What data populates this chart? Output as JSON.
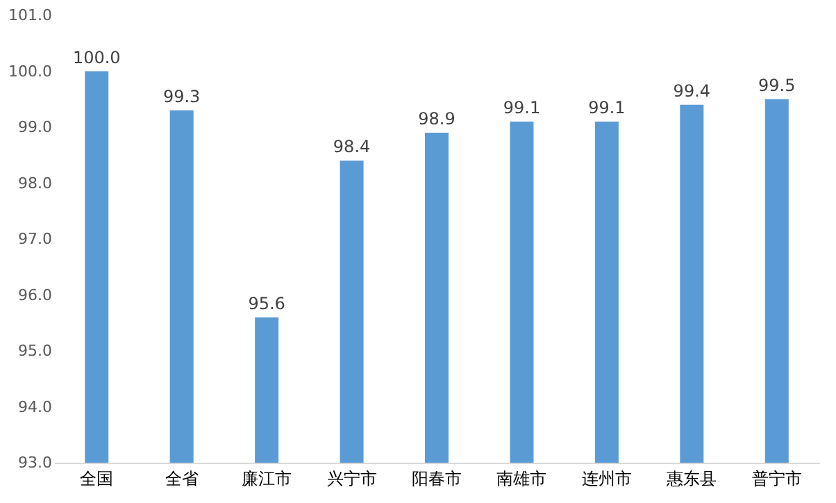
{
  "chart_data": {
    "type": "bar",
    "categories": [
      "全国",
      "全省",
      "廉江市",
      "兴宁市",
      "阳春市",
      "南雄市",
      "连州市",
      "惠东县",
      "普宁市"
    ],
    "values": [
      100.0,
      99.3,
      95.6,
      98.4,
      98.9,
      99.1,
      99.1,
      99.4,
      99.5
    ],
    "value_labels": [
      "100.0",
      "99.3",
      "95.6",
      "98.4",
      "98.9",
      "99.1",
      "99.1",
      "99.4",
      "99.5"
    ],
    "colors": [
      "#5b9bd5",
      "#5b9bd5",
      "#5b9bd5",
      "#5b9bd5",
      "#5b9bd5",
      "#5b9bd5",
      "#5b9bd5",
      "#5b9bd5",
      "#5b9bd5"
    ],
    "ylim": [
      93,
      101
    ],
    "yticks": [
      {
        "value": 93,
        "label": "93.0"
      },
      {
        "value": 94,
        "label": "94.0"
      },
      {
        "value": 95,
        "label": "95.0"
      },
      {
        "value": 96,
        "label": "96.0"
      },
      {
        "value": 97,
        "label": "97.0"
      },
      {
        "value": 98,
        "label": "98.0"
      },
      {
        "value": 99,
        "label": "99.0"
      },
      {
        "value": 100,
        "label": "100.0"
      },
      {
        "value": 101,
        "label": "101.0"
      }
    ],
    "grid": false,
    "legend": false
  }
}
